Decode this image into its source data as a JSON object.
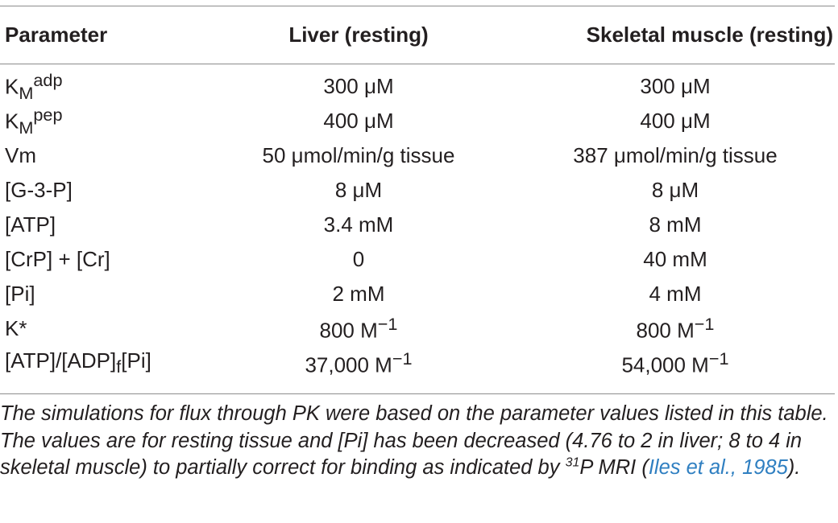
{
  "table": {
    "headers": [
      "Parameter",
      "Liver (resting)",
      "Skeletal muscle (resting)"
    ],
    "rows": [
      {
        "parameter": "K_M^adp",
        "liver": "300 μM",
        "muscle": "300 μM"
      },
      {
        "parameter": "K_M^pep",
        "liver": "400 μM",
        "muscle": "400 μM"
      },
      {
        "parameter": "Vm",
        "liver": "50 μmol/min/g tissue",
        "muscle": "387 μmol/min/g tissue"
      },
      {
        "parameter": "[G-3-P]",
        "liver": "8 μM",
        "muscle": "8 μM"
      },
      {
        "parameter": "[ATP]",
        "liver": "3.4 mM",
        "muscle": "8 mM"
      },
      {
        "parameter": "[CrP] + [Cr]",
        "liver": "0",
        "muscle": "40 mM"
      },
      {
        "parameter": "[Pi]",
        "liver": "2 mM",
        "muscle": "4 mM"
      },
      {
        "parameter": "K*",
        "liver": "800 M−1",
        "muscle": "800 M−1"
      },
      {
        "parameter": "[ATP]/[ADP]f[Pi]",
        "liver": "37,000 M−1",
        "muscle": "54,000 M−1"
      }
    ]
  },
  "cells": {
    "r0_base": "K",
    "r0_sub": "M",
    "r0_sup": "adp",
    "r1_base": "K",
    "r1_sub": "M",
    "r1_sup": "pep",
    "r2_param": "Vm",
    "r3_param": "[G-3-P]",
    "r4_param": "[ATP]",
    "r5_param": "[CrP] + [Cr]",
    "r6_param": "[Pi]",
    "r7_param": "K*",
    "r8_a": "[ATP]/[ADP]",
    "r8_sub": "f",
    "r8_b": "[Pi]",
    "r7_liver_num": "800 M",
    "r7_muscle_num": "800 M",
    "r8_liver_num": "37,000 M",
    "r8_muscle_num": "54,000 M",
    "neg1": "−1"
  },
  "caption": {
    "part1": "The simulations for flux through PK were based on the parameter values listed in this table. The values are for resting tissue and [Pi] has been decreased (4.76 to 2 in liver; 8 to 4 in skeletal muscle) to partially correct for binding as indicated by ",
    "sup": "31",
    "part2": "P MRI (",
    "citation": "Iles et al., 1985",
    "part3": ")."
  }
}
